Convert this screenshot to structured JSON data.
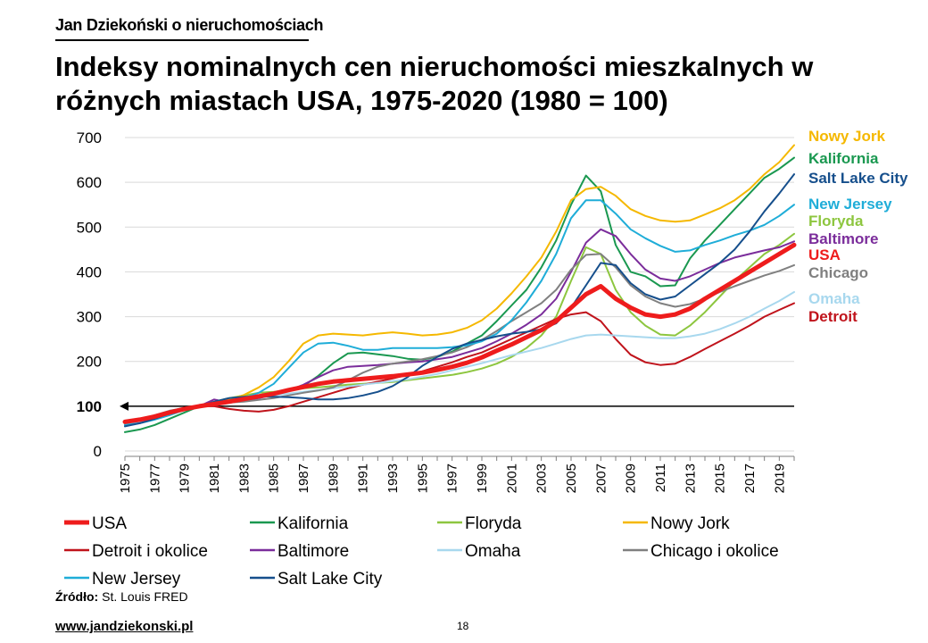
{
  "header": {
    "brand": "Jan Dziekoński o nieruchomościach",
    "title": "Indeksy nominalnych cen nieruchomości mieszkalnych w różnych miastach USA, 1975-2020 (1980 = 100)"
  },
  "footer": {
    "source_label": "Źródło:",
    "source_value": "St. Louis FRED",
    "website": "www.jandziekonski.pl",
    "page_number": "18"
  },
  "chart_data": {
    "type": "line",
    "title": "Indeksy nominalnych cen nieruchomości mieszkalnych w różnych miastach USA, 1975-2020 (1980 = 100)",
    "xlabel": "",
    "ylabel": "",
    "ylim": [
      0,
      700
    ],
    "yticks": [
      0,
      100,
      200,
      300,
      400,
      500,
      600,
      700
    ],
    "xlim": [
      1975,
      2020
    ],
    "xticks": [
      "1975",
      "1977",
      "1979",
      "1981",
      "1983",
      "1985",
      "1987",
      "1989",
      "1991",
      "1993",
      "1995",
      "1997",
      "1999",
      "2001",
      "2003",
      "2005",
      "2007",
      "2009",
      "2011",
      "2013",
      "2015",
      "2017",
      "2019"
    ],
    "reference_line": {
      "value": 100
    },
    "x": [
      1975,
      1976,
      1977,
      1978,
      1979,
      1980,
      1981,
      1982,
      1983,
      1984,
      1985,
      1986,
      1987,
      1988,
      1989,
      1990,
      1991,
      1992,
      1993,
      1994,
      1995,
      1996,
      1997,
      1998,
      1999,
      2000,
      2001,
      2002,
      2003,
      2004,
      2005,
      2006,
      2007,
      2008,
      2009,
      2010,
      2011,
      2012,
      2013,
      2014,
      2015,
      2016,
      2017,
      2018,
      2019,
      2020
    ],
    "series": [
      {
        "name": "USA",
        "end_label": "USA",
        "color": "#ee1c1c",
        "width": 5,
        "values": [
          65,
          70,
          77,
          86,
          94,
          100,
          105,
          110,
          116,
          122,
          128,
          136,
          143,
          150,
          155,
          158,
          161,
          164,
          167,
          171,
          175,
          181,
          188,
          197,
          209,
          224,
          238,
          254,
          270,
          290,
          320,
          350,
          368,
          340,
          320,
          305,
          300,
          305,
          318,
          340,
          360,
          380,
          400,
          420,
          440,
          460
        ]
      },
      {
        "name": "Kalifornia",
        "end_label": "Kalifornia",
        "color": "#1a9850",
        "width": 2,
        "values": [
          42,
          48,
          58,
          72,
          86,
          100,
          108,
          112,
          118,
          124,
          128,
          134,
          145,
          168,
          196,
          218,
          220,
          216,
          212,
          206,
          204,
          210,
          222,
          240,
          258,
          290,
          325,
          360,
          410,
          470,
          550,
          615,
          580,
          460,
          400,
          390,
          368,
          370,
          430,
          470,
          505,
          540,
          575,
          610,
          630,
          655
        ]
      },
      {
        "name": "Floryda",
        "end_label": "Floryda",
        "color": "#8dc63f",
        "width": 2,
        "values": [
          60,
          65,
          75,
          86,
          94,
          100,
          110,
          118,
          124,
          130,
          132,
          136,
          140,
          142,
          145,
          148,
          150,
          152,
          154,
          158,
          162,
          166,
          170,
          176,
          184,
          195,
          210,
          230,
          258,
          300,
          380,
          455,
          440,
          360,
          310,
          280,
          260,
          258,
          280,
          310,
          345,
          380,
          410,
          440,
          460,
          485
        ]
      },
      {
        "name": "Nowy Jork",
        "end_label": "Nowy Jork",
        "color": "#f5b800",
        "width": 2,
        "values": [
          60,
          64,
          72,
          82,
          92,
          100,
          108,
          115,
          125,
          142,
          165,
          200,
          240,
          258,
          262,
          260,
          258,
          262,
          265,
          262,
          258,
          260,
          265,
          275,
          292,
          318,
          352,
          390,
          432,
          490,
          560,
          585,
          590,
          570,
          540,
          525,
          515,
          512,
          515,
          528,
          542,
          560,
          585,
          618,
          645,
          683
        ]
      },
      {
        "name": "Detroit i okolice",
        "end_label": "Detroit",
        "color": "#c0131b",
        "width": 2,
        "values": [
          60,
          66,
          74,
          84,
          92,
          100,
          100,
          94,
          90,
          88,
          92,
          100,
          110,
          120,
          130,
          140,
          148,
          155,
          162,
          170,
          178,
          188,
          198,
          210,
          220,
          235,
          250,
          265,
          280,
          295,
          305,
          310,
          290,
          250,
          215,
          198,
          192,
          195,
          210,
          228,
          245,
          262,
          280,
          300,
          315,
          330
        ]
      },
      {
        "name": "Baltimore",
        "end_label": "Baltimore",
        "color": "#7b2d9b",
        "width": 2,
        "values": [
          58,
          64,
          72,
          82,
          92,
          100,
          115,
          108,
          112,
          118,
          125,
          135,
          148,
          165,
          180,
          188,
          190,
          192,
          195,
          198,
          200,
          205,
          210,
          220,
          230,
          245,
          262,
          282,
          305,
          340,
          400,
          465,
          495,
          480,
          440,
          405,
          385,
          380,
          390,
          405,
          420,
          432,
          440,
          448,
          455,
          468
        ]
      },
      {
        "name": "Omaha",
        "end_label": "Omaha",
        "color": "#a8d8ee",
        "width": 2,
        "values": [
          60,
          66,
          74,
          84,
          92,
          100,
          108,
          112,
          116,
          120,
          124,
          128,
          132,
          136,
          140,
          144,
          148,
          152,
          156,
          160,
          166,
          172,
          180,
          188,
          196,
          205,
          214,
          222,
          230,
          240,
          250,
          258,
          260,
          258,
          256,
          254,
          252,
          252,
          256,
          262,
          272,
          285,
          300,
          318,
          335,
          355
        ]
      },
      {
        "name": "Chicago i okolice",
        "end_label": "Chicago",
        "color": "#808080",
        "width": 2,
        "values": [
          62,
          70,
          80,
          90,
          96,
          100,
          104,
          108,
          110,
          114,
          118,
          124,
          130,
          135,
          142,
          158,
          175,
          188,
          195,
          200,
          205,
          212,
          220,
          232,
          248,
          268,
          290,
          310,
          330,
          360,
          405,
          438,
          440,
          410,
          370,
          345,
          330,
          322,
          328,
          340,
          355,
          368,
          380,
          392,
          402,
          415
        ]
      },
      {
        "name": "New Jersey",
        "end_label": "New Jersey",
        "color": "#1fadd8",
        "width": 2,
        "values": [
          58,
          62,
          70,
          80,
          92,
          100,
          106,
          112,
          118,
          130,
          150,
          185,
          220,
          240,
          242,
          235,
          226,
          226,
          230,
          230,
          230,
          230,
          232,
          236,
          245,
          262,
          292,
          332,
          380,
          440,
          520,
          560,
          560,
          530,
          495,
          475,
          458,
          445,
          448,
          460,
          470,
          482,
          492,
          505,
          525,
          550
        ]
      },
      {
        "name": "Salt Lake City",
        "end_label": "Salt Lake City",
        "color": "#164f8c",
        "width": 2,
        "values": [
          55,
          62,
          72,
          84,
          94,
          100,
          110,
          118,
          121,
          122,
          121,
          120,
          118,
          115,
          115,
          118,
          124,
          132,
          145,
          165,
          190,
          210,
          228,
          240,
          248,
          256,
          262,
          266,
          272,
          285,
          320,
          370,
          420,
          415,
          375,
          350,
          338,
          345,
          370,
          395,
          420,
          450,
          490,
          535,
          575,
          618
        ]
      }
    ]
  }
}
